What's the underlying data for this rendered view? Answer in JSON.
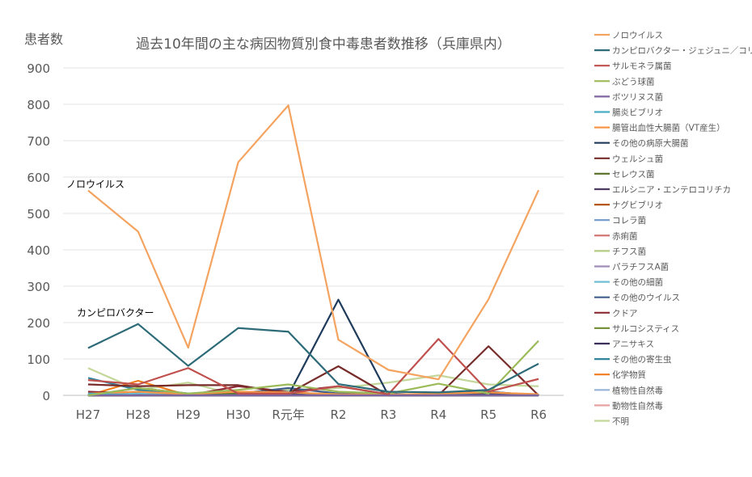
{
  "chart_data": {
    "type": "line",
    "title": "過去10年間の主な病因物質別食中毒患者数推移（兵庫県内）",
    "ylabel": "患者数",
    "ylim": [
      0,
      900
    ],
    "yticks": [
      0,
      100,
      200,
      300,
      400,
      500,
      600,
      700,
      800,
      900
    ],
    "grid": true,
    "legend_position": "right",
    "categories": [
      "H27",
      "H28",
      "H29",
      "H30",
      "R元年",
      "R2",
      "R3",
      "R4",
      "R5",
      "R6"
    ],
    "annotations": [
      "ノロウイルス",
      "カンピロバクター"
    ],
    "series": [
      {
        "name": "ノロウイルス",
        "color": "#f4a460",
        "values": [
          563,
          450,
          131,
          641,
          797,
          153,
          70,
          44,
          264,
          564
        ]
      },
      {
        "name": "カンピロバクター・ジェジュニ／コリ",
        "color": "#2e6b78",
        "values": [
          130,
          196,
          81,
          185,
          175,
          31,
          10,
          8,
          15,
          87
        ]
      },
      {
        "name": "サルモネラ属菌",
        "color": "#c0504d",
        "values": [
          42,
          30,
          75,
          5,
          5,
          25,
          3,
          155,
          10,
          45
        ]
      },
      {
        "name": "ぶどう球菌",
        "color": "#9bbb59",
        "values": [
          0,
          20,
          5,
          15,
          30,
          10,
          5,
          32,
          5,
          150
        ]
      },
      {
        "name": "ボツリヌス菌",
        "color": "#8064a2",
        "values": [
          0,
          0,
          0,
          0,
          0,
          0,
          0,
          0,
          0,
          0
        ]
      },
      {
        "name": "腸炎ビブリオ",
        "color": "#4bacc6",
        "values": [
          5,
          0,
          0,
          0,
          0,
          0,
          0,
          0,
          0,
          0
        ]
      },
      {
        "name": "腸管出血性大腸菌（VT産生）",
        "color": "#f79646",
        "values": [
          5,
          10,
          3,
          10,
          8,
          3,
          2,
          5,
          8,
          3
        ]
      },
      {
        "name": "その他の病原大腸菌",
        "color": "#1f3b5c",
        "values": [
          0,
          0,
          0,
          0,
          0,
          263,
          0,
          0,
          0,
          0
        ]
      },
      {
        "name": "ウェルシュ菌",
        "color": "#772c2a",
        "values": [
          30,
          25,
          28,
          28,
          5,
          80,
          0,
          0,
          135,
          0
        ]
      },
      {
        "name": "セレウス菌",
        "color": "#5f7530",
        "values": [
          0,
          0,
          0,
          5,
          0,
          0,
          0,
          0,
          0,
          0
        ]
      },
      {
        "name": "エルシニア・エンテロコリチカ",
        "color": "#4d3b62",
        "values": [
          0,
          0,
          0,
          0,
          0,
          0,
          0,
          0,
          0,
          0
        ]
      },
      {
        "name": "ナグビブリオ",
        "color": "#b65708",
        "values": [
          0,
          0,
          0,
          0,
          0,
          0,
          0,
          0,
          0,
          0
        ]
      },
      {
        "name": "コレラ菌",
        "color": "#729aca",
        "values": [
          0,
          0,
          0,
          0,
          0,
          0,
          0,
          0,
          0,
          0
        ]
      },
      {
        "name": "赤痢菌",
        "color": "#d06e6b",
        "values": [
          0,
          0,
          0,
          0,
          0,
          0,
          0,
          0,
          0,
          0
        ]
      },
      {
        "name": "チフス菌",
        "color": "#b3cc82",
        "values": [
          0,
          0,
          0,
          0,
          0,
          0,
          0,
          0,
          0,
          0
        ]
      },
      {
        "name": "パラチフスA菌",
        "color": "#a08cb6",
        "values": [
          0,
          0,
          0,
          0,
          0,
          0,
          0,
          0,
          0,
          0
        ]
      },
      {
        "name": "その他の細菌",
        "color": "#6fc0d6",
        "values": [
          0,
          5,
          0,
          0,
          10,
          0,
          0,
          0,
          0,
          0
        ]
      },
      {
        "name": "その他のウイルス",
        "color": "#3f5f8a",
        "values": [
          0,
          20,
          5,
          5,
          20,
          5,
          5,
          0,
          10,
          0
        ]
      },
      {
        "name": "クドア",
        "color": "#8c2b36",
        "values": [
          10,
          5,
          0,
          25,
          10,
          25,
          3,
          3,
          10,
          0
        ]
      },
      {
        "name": "サルコシスティス",
        "color": "#76923c",
        "values": [
          0,
          0,
          0,
          0,
          0,
          0,
          0,
          0,
          0,
          0
        ]
      },
      {
        "name": "アニサキス",
        "color": "#3d2f5b",
        "values": [
          2,
          3,
          3,
          3,
          3,
          3,
          3,
          3,
          3,
          2
        ]
      },
      {
        "name": "その他の寄生虫",
        "color": "#31859c",
        "values": [
          48,
          15,
          0,
          0,
          0,
          0,
          0,
          0,
          0,
          0
        ]
      },
      {
        "name": "化学物質",
        "color": "#f07c1c",
        "values": [
          0,
          40,
          0,
          0,
          0,
          0,
          0,
          0,
          0,
          0
        ]
      },
      {
        "name": "植物性自然毒",
        "color": "#95b3d7",
        "values": [
          3,
          5,
          3,
          3,
          3,
          3,
          2,
          3,
          2,
          2
        ]
      },
      {
        "name": "動物性自然毒",
        "color": "#e6a0a0",
        "values": [
          8,
          5,
          3,
          5,
          5,
          5,
          3,
          3,
          5,
          3
        ]
      },
      {
        "name": "不明",
        "color": "#c4d79b",
        "values": [
          75,
          15,
          35,
          0,
          15,
          20,
          35,
          55,
          30,
          25
        ]
      }
    ]
  }
}
